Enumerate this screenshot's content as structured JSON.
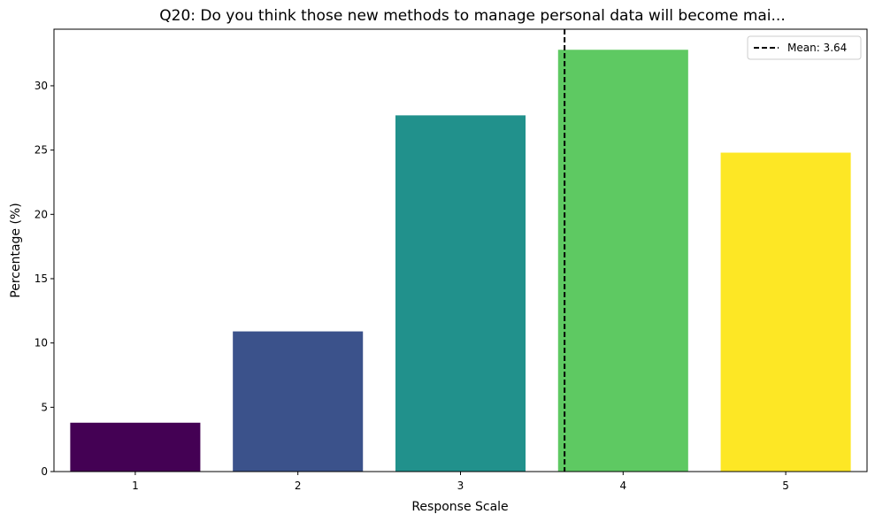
{
  "chart_data": {
    "type": "bar",
    "title": "Q20: Do you think those new methods to manage personal data will become mai...",
    "xlabel": "Response Scale",
    "ylabel": "Percentage (%)",
    "categories": [
      "1",
      "2",
      "3",
      "4",
      "5"
    ],
    "values": [
      3.8,
      10.9,
      27.7,
      32.8,
      24.8
    ],
    "colors": [
      "#440154",
      "#3b528b",
      "#21918c",
      "#5ec962",
      "#fde725"
    ],
    "ylim": [
      0,
      34.4
    ],
    "yticks": [
      "0",
      "5",
      "10",
      "15",
      "20",
      "25",
      "30"
    ],
    "grid": false,
    "mean_line": {
      "value": 3.64,
      "label": "Mean: 3.64",
      "style": "dashed",
      "color": "#000000"
    },
    "legend_position": "top-right"
  }
}
